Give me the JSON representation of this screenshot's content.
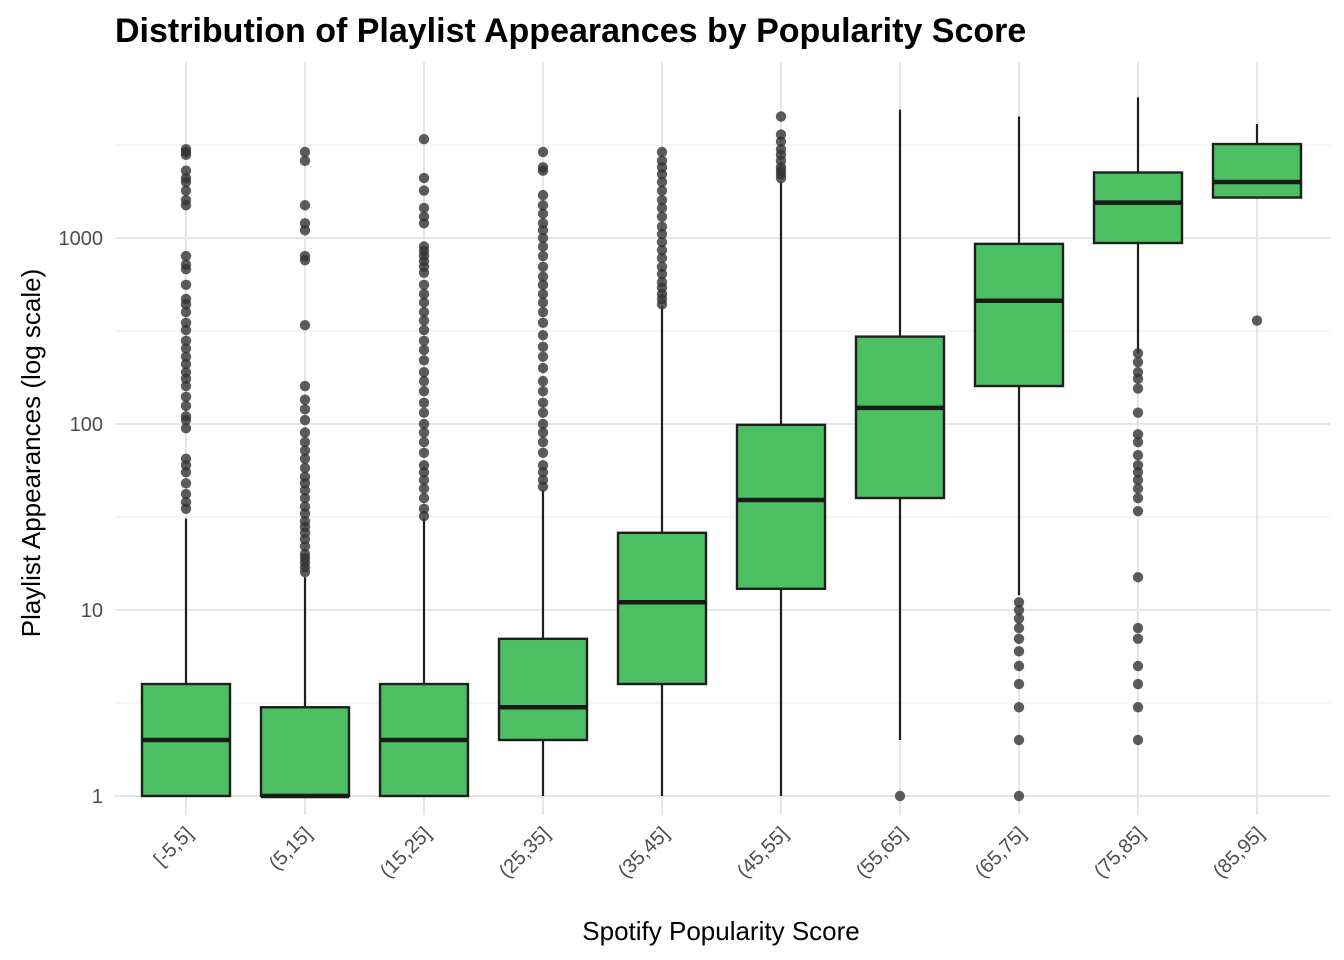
{
  "chart_data": {
    "type": "box",
    "title": "Distribution of Playlist Appearances by Popularity Score",
    "xlabel": "Spotify Popularity Score",
    "ylabel": "Playlist Appearances (log scale)",
    "y_scale": "log10",
    "ylim": [
      0.83,
      7000
    ],
    "y_ticks": [
      1,
      10,
      100,
      1000
    ],
    "y_tick_labels": [
      "1",
      "10",
      "100",
      "1000"
    ],
    "grid": true,
    "legend": "none",
    "box_fill": "#4cbf63",
    "box_stroke": "#1f1f1f",
    "outlier_color": "#333333",
    "categories": [
      "[-5,5]",
      "(5,15]",
      "(15,25]",
      "(25,35]",
      "(35,45]",
      "(45,55]",
      "(55,65]",
      "(65,75]",
      "(75,85]",
      "(85,95]"
    ],
    "boxes": [
      {
        "category": "[-5,5]",
        "whisker_low": 1,
        "q1": 1,
        "median": 2,
        "q3": 4,
        "whisker_high": 31,
        "outliers": [
          35,
          38,
          42,
          48,
          55,
          60,
          65,
          95,
          105,
          110,
          125,
          140,
          160,
          175,
          190,
          210,
          230,
          255,
          280,
          320,
          350,
          400,
          440,
          470,
          560,
          680,
          720,
          800,
          1500,
          1600,
          1800,
          2000,
          2100,
          2300,
          2800,
          2900,
          3000
        ]
      },
      {
        "category": "(5,15]",
        "whisker_low": 1,
        "q1": 1,
        "median": 1,
        "q3": 3,
        "whisker_high": 15,
        "outliers": [
          16,
          17,
          18,
          19,
          20,
          22,
          24,
          26,
          28,
          30,
          33,
          36,
          40,
          44,
          48,
          52,
          58,
          65,
          72,
          80,
          90,
          105,
          120,
          135,
          160,
          340,
          760,
          800,
          1100,
          1200,
          1500,
          2600,
          2900
        ]
      },
      {
        "category": "(15,25]",
        "whisker_low": 1,
        "q1": 1,
        "median": 2,
        "q3": 4,
        "whisker_high": 31,
        "outliers": [
          32,
          35,
          40,
          45,
          50,
          55,
          60,
          70,
          80,
          90,
          100,
          115,
          130,
          150,
          170,
          190,
          220,
          250,
          280,
          320,
          360,
          400,
          450,
          500,
          560,
          650,
          700,
          750,
          800,
          850,
          900,
          1200,
          1300,
          1450,
          1800,
          2100,
          3400
        ]
      },
      {
        "category": "(25,35]",
        "whisker_low": 1,
        "q1": 2,
        "median": 3,
        "q3": 7,
        "whisker_high": 44,
        "outliers": [
          46,
          50,
          55,
          60,
          70,
          80,
          90,
          100,
          115,
          130,
          150,
          170,
          200,
          230,
          260,
          300,
          350,
          400,
          450,
          500,
          560,
          620,
          700,
          800,
          900,
          1000,
          1100,
          1200,
          1350,
          1500,
          1700,
          2300,
          2400,
          2900
        ]
      },
      {
        "category": "(35,45]",
        "whisker_low": 1,
        "q1": 4,
        "median": 11,
        "q3": 26,
        "whisker_high": 430,
        "outliers": [
          440,
          470,
          500,
          540,
          580,
          640,
          700,
          780,
          860,
          950,
          1050,
          1150,
          1300,
          1450,
          1600,
          1800,
          2000,
          2200,
          2400,
          2600,
          2900
        ]
      },
      {
        "category": "(45,55]",
        "whisker_low": 1,
        "q1": 13,
        "median": 39,
        "q3": 99,
        "whisker_high": 2000,
        "outliers": [
          2100,
          2200,
          2300,
          2400,
          2600,
          2800,
          3000,
          3300,
          3600,
          4500
        ]
      },
      {
        "category": "(55,65]",
        "whisker_low": 2,
        "q1": 40,
        "median": 122,
        "q3": 295,
        "whisker_high": 4900,
        "outliers": [
          1
        ]
      },
      {
        "category": "(65,75]",
        "whisker_low": 12,
        "q1": 160,
        "median": 460,
        "q3": 930,
        "whisker_high": 4500,
        "outliers": [
          1,
          2,
          3,
          4,
          5,
          6,
          7,
          8,
          9,
          10,
          11
        ]
      },
      {
        "category": "(75,85]",
        "whisker_low": 240,
        "q1": 940,
        "median": 1550,
        "q3": 2250,
        "whisker_high": 5700,
        "outliers": [
          2,
          3,
          4,
          5,
          7,
          8,
          15,
          34,
          40,
          45,
          50,
          55,
          60,
          68,
          80,
          88,
          115,
          155,
          175,
          190,
          215,
          240
        ]
      },
      {
        "category": "(85,95]",
        "whisker_low": 1650,
        "q1": 1650,
        "median": 2000,
        "q3": 3200,
        "whisker_high": 4100,
        "outliers": [
          360
        ]
      }
    ]
  }
}
